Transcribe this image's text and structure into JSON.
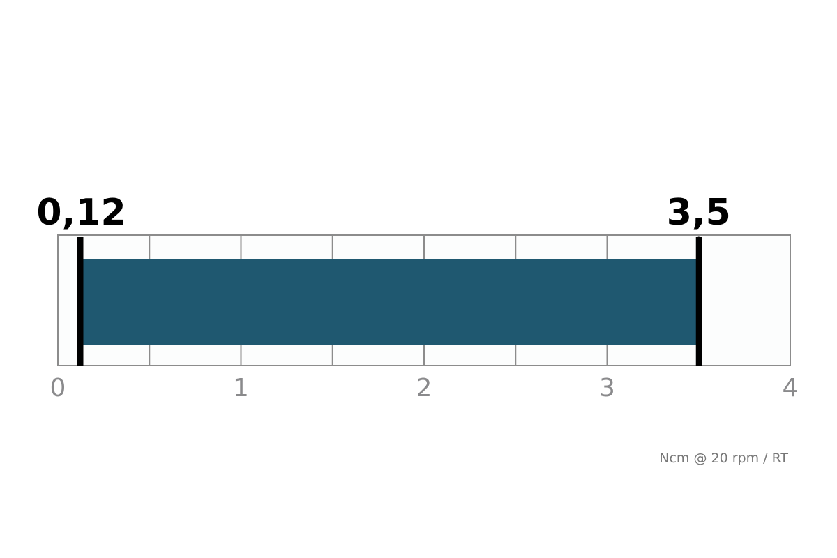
{
  "chart_data": {
    "type": "bar",
    "orientation": "horizontal-range",
    "min_value": 0.12,
    "max_value": 3.5,
    "min_label": "0,12",
    "max_label": "3,5",
    "xlim": [
      0,
      4
    ],
    "x_ticks": [
      0,
      1,
      2,
      3,
      4
    ],
    "tick_labels": [
      "0",
      "1",
      "2",
      "3",
      "4"
    ],
    "minor_grid_step": 0.5,
    "grid": true,
    "unit_label": "Ncm @ 20 rpm / RT",
    "colors": {
      "bar": "#1f5870",
      "marker": "#000000",
      "grid": "#8c8c8c",
      "tick_text": "#8a8a8c"
    }
  }
}
